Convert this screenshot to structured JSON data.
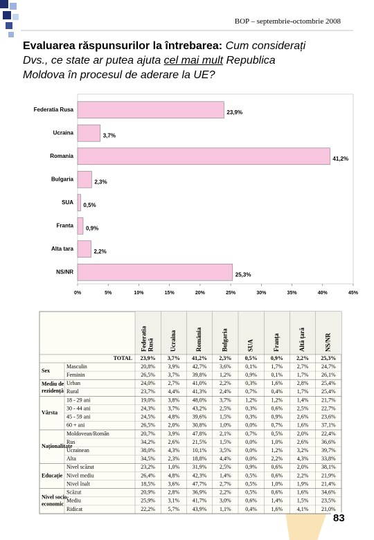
{
  "header": "BOP – septembrie-octombrie 2008",
  "title": [
    "Evaluarea răspunsurilor la întrebarea:",
    "Cum considerați",
    "Dvs., ce state ar putea ajuta",
    "cel mai mult",
    "Republica",
    "Moldova în procesul de aderare la UE?"
  ],
  "chart_data": {
    "type": "barh",
    "categories": [
      "Federatia Rusa",
      "Ucraina",
      "Romania",
      "Bulgaria",
      "SUA",
      "Franta",
      "Alta tara",
      "NS/NR"
    ],
    "values": [
      23.9,
      3.7,
      41.2,
      2.3,
      0.5,
      0.9,
      2.2,
      25.3
    ],
    "value_labels": [
      "23,9%",
      "3,7%",
      "41,2%",
      "2,3%",
      "0,5%",
      "0,9%",
      "2,2%",
      "25,3%"
    ],
    "color": "#f7c6de",
    "xlim": [
      0,
      45
    ],
    "xticks": [
      {
        "value": 0,
        "label": "0%"
      },
      {
        "value": 5,
        "label": "5%"
      },
      {
        "value": 10,
        "label": "10%"
      },
      {
        "value": 15,
        "label": "15%"
      },
      {
        "value": 20,
        "label": "20%"
      },
      {
        "value": 25,
        "label": "25%"
      },
      {
        "value": 30,
        "label": "30%"
      },
      {
        "value": 35,
        "label": "35%"
      },
      {
        "value": 40,
        "label": "40%"
      },
      {
        "value": 45,
        "label": "45%"
      }
    ]
  },
  "table": {
    "columns": [
      [
        "Federatia",
        "Rusă"
      ],
      [
        "Ucraina"
      ],
      [
        "România"
      ],
      [
        "Bulgaria"
      ],
      [
        "SUA"
      ],
      [
        "Franța"
      ],
      [
        "Altă țară"
      ],
      [
        "NS/NR"
      ]
    ],
    "total_label": "TOTAL",
    "total": [
      "23,9%",
      "3,7%",
      "41,2%",
      "2,3%",
      "0,5%",
      "0,9%",
      "2,2%",
      "25,3%"
    ],
    "groups": [
      {
        "label": [
          "Sex"
        ],
        "rows": [
          {
            "label": "Masculin",
            "cells": [
              "20,8%",
              "3,9%",
              "42,7%",
              "3,6%",
              "0,1%",
              "1,7%",
              "2,7%",
              "24,7%"
            ]
          },
          {
            "label": "Feminin",
            "cells": [
              "26,5%",
              "3,7%",
              "39,8%",
              "1,2%",
              "0,9%",
              "0,1%",
              "1,7%",
              "26,1%"
            ]
          }
        ]
      },
      {
        "label": [
          "Mediu de",
          "rezidență"
        ],
        "rows": [
          {
            "label": "Urban",
            "cells": [
              "24,0%",
              "2,7%",
              "41,0%",
              "2,2%",
              "0,3%",
              "1,6%",
              "2,8%",
              "25,4%"
            ]
          },
          {
            "label": "Rural",
            "cells": [
              "23,7%",
              "4,4%",
              "41,3%",
              "2,4%",
              "0,7%",
              "0,4%",
              "1,7%",
              "25,4%"
            ]
          }
        ]
      },
      {
        "label": [
          "Vârsta"
        ],
        "rows": [
          {
            "label": "18 - 29 ani",
            "cells": [
              "19,0%",
              "3,8%",
              "48,0%",
              "3,7%",
              "1,2%",
              "1,2%",
              "1,4%",
              "21,7%"
            ]
          },
          {
            "label": "30 - 44 ani",
            "cells": [
              "24,3%",
              "3,7%",
              "43,2%",
              "2,5%",
              "0,3%",
              "0,6%",
              "2,5%",
              "22,7%"
            ]
          },
          {
            "label": "45 - 59 ani",
            "cells": [
              "24,5%",
              "4,8%",
              "39,6%",
              "1,5%",
              "0,3%",
              "0,9%",
              "2,6%",
              "23,6%"
            ]
          },
          {
            "label": "60 + ani",
            "cells": [
              "26,5%",
              "2,0%",
              "30,8%",
              "1,0%",
              "0,0%",
              "0,7%",
              "1,6%",
              "37,1%"
            ]
          }
        ]
      },
      {
        "label": [
          "Naționalitate"
        ],
        "rows": [
          {
            "label": "Moldovean/Român",
            "cells": [
              "20,7%",
              "3,9%",
              "47,8%",
              "2,1%",
              "0,7%",
              "0,5%",
              "2,0%",
              "22,4%"
            ]
          },
          {
            "label": "Rus",
            "cells": [
              "34,2%",
              "2,6%",
              "21,5%",
              "1,5%",
              "0,0%",
              "1,0%",
              "2,6%",
              "36,6%"
            ]
          },
          {
            "label": "Ucrainean",
            "cells": [
              "38,0%",
              "4,3%",
              "10,1%",
              "3,5%",
              "0,0%",
              "1,2%",
              "3,2%",
              "39,7%"
            ]
          },
          {
            "label": "Alta",
            "cells": [
              "34,5%",
              "2,3%",
              "18,8%",
              "4,4%",
              "0,0%",
              "2,2%",
              "4,3%",
              "33,8%"
            ]
          }
        ]
      },
      {
        "label": [
          "Educație"
        ],
        "rows": [
          {
            "label": "Nivel scăzut",
            "cells": [
              "23,2%",
              "1,0%",
              "31,9%",
              "2,5%",
              "0,9%",
              "0,6%",
              "2,0%",
              "38,1%"
            ]
          },
          {
            "label": "Nivel mediu",
            "cells": [
              "26,4%",
              "4,8%",
              "42,3%",
              "1,4%",
              "0,5%",
              "0,6%",
              "2,2%",
              "21,9%"
            ]
          },
          {
            "label": "Nivel înalt",
            "cells": [
              "18,5%",
              "3,6%",
              "47,7%",
              "2,7%",
              "0,5%",
              "1,0%",
              "1,9%",
              "21,4%"
            ]
          }
        ]
      },
      {
        "label": [
          "Nivel socio-",
          "economic"
        ],
        "rows": [
          {
            "label": "Scăzut",
            "cells": [
              "20,9%",
              "2,8%",
              "36,9%",
              "2,2%",
              "0,5%",
              "0,6%",
              "1,6%",
              "34,6%"
            ]
          },
          {
            "label": "Mediu",
            "cells": [
              "25,9%",
              "3,1%",
              "41,7%",
              "3,0%",
              "0,6%",
              "1,4%",
              "1,5%",
              "23,5%"
            ]
          },
          {
            "label": "Ridicat",
            "cells": [
              "22,2%",
              "5,7%",
              "43,9%",
              "1,1%",
              "0,4%",
              "1,6%",
              "4,1%",
              "21,0%"
            ]
          }
        ]
      }
    ]
  },
  "page_number": "83"
}
